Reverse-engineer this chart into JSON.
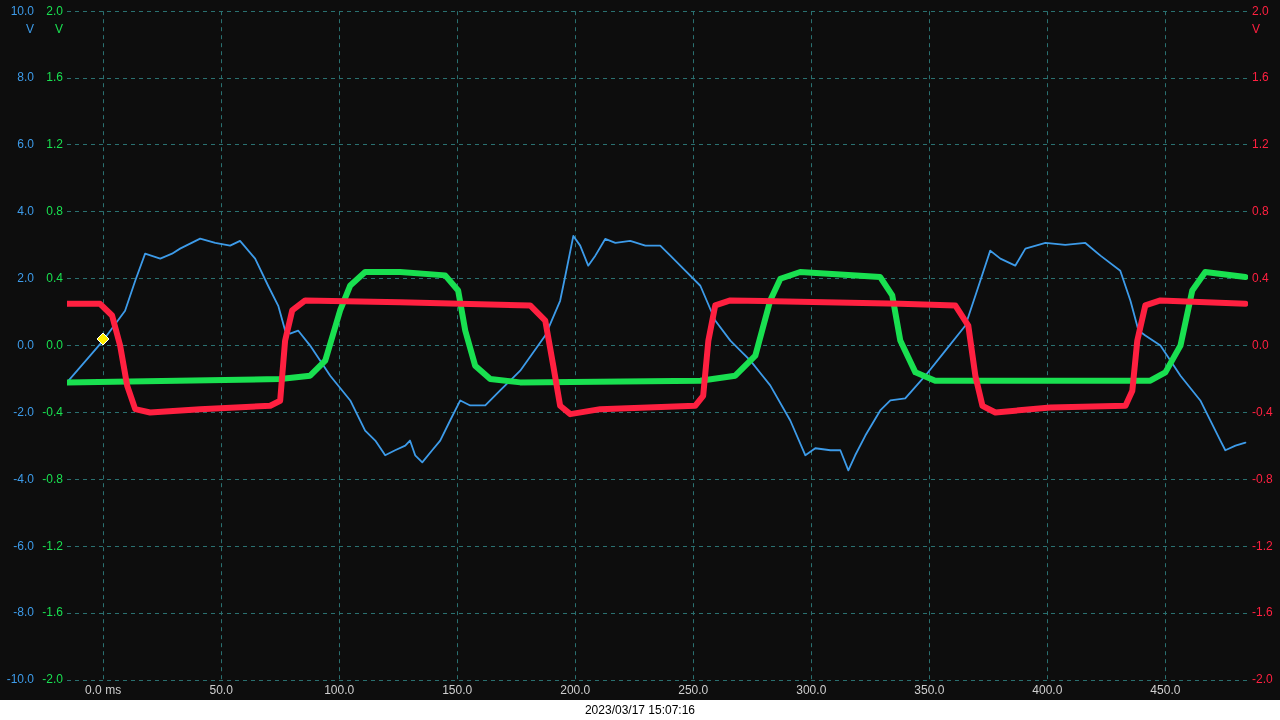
{
  "chart_data": {
    "type": "line",
    "xlim": [
      -15.3,
      485
    ],
    "xticks": [
      {
        "value": 0,
        "label": "0.0 ms"
      },
      {
        "value": 50,
        "label": "50.0"
      },
      {
        "value": 100,
        "label": "100.0"
      },
      {
        "value": 150,
        "label": "150.0"
      },
      {
        "value": 200,
        "label": "200.0"
      },
      {
        "value": 250,
        "label": "250.0"
      },
      {
        "value": 300,
        "label": "300.0"
      },
      {
        "value": 350,
        "label": "350.0"
      },
      {
        "value": 400,
        "label": "400.0"
      },
      {
        "value": 450,
        "label": "450.0"
      }
    ],
    "ylabel": "V",
    "y2label": "V",
    "y3label": "V",
    "ylim": [
      -10,
      10
    ],
    "yticks": [
      {
        "value": -10,
        "label": "-10.0"
      },
      {
        "value": -8,
        "label": "-8.0"
      },
      {
        "value": -6,
        "label": "-6.0"
      },
      {
        "value": -4,
        "label": "-4.0"
      },
      {
        "value": -2,
        "label": "-2.0"
      },
      {
        "value": 0,
        "label": "0.0"
      },
      {
        "value": 2,
        "label": "2.0"
      },
      {
        "value": 4,
        "label": "4.0"
      },
      {
        "value": 6,
        "label": "6.0"
      },
      {
        "value": 8,
        "label": "8.0"
      },
      {
        "value": 10,
        "label": "10.0"
      }
    ],
    "y2lim": [
      -2,
      2
    ],
    "y2ticks": [
      {
        "value": -2,
        "label": "-2.0"
      },
      {
        "value": -1.6,
        "label": "-1.6"
      },
      {
        "value": -1.2,
        "label": "-1.2"
      },
      {
        "value": -0.8,
        "label": "-0.8"
      },
      {
        "value": -0.4,
        "label": "-0.4"
      },
      {
        "value": 0,
        "label": "0.0"
      },
      {
        "value": 0.4,
        "label": "0.4"
      },
      {
        "value": 0.8,
        "label": "0.8"
      },
      {
        "value": 1.2,
        "label": "1.2"
      },
      {
        "value": 1.6,
        "label": "1.6"
      },
      {
        "value": 2,
        "label": "2.0"
      }
    ],
    "y3lim": [
      -2,
      2
    ],
    "y3ticks": [
      {
        "value": -2,
        "label": "-2.0"
      },
      {
        "value": -1.6,
        "label": "-1.6"
      },
      {
        "value": -1.2,
        "label": "-1.2"
      },
      {
        "value": -0.8,
        "label": "-0.8"
      },
      {
        "value": -0.4,
        "label": "-0.4"
      },
      {
        "value": 0,
        "label": "0.0"
      },
      {
        "value": 0.4,
        "label": "0.4"
      },
      {
        "value": 0.8,
        "label": "0.8"
      },
      {
        "value": 1.2,
        "label": "1.2"
      },
      {
        "value": 1.6,
        "label": "1.6"
      },
      {
        "value": 2,
        "label": "2.0"
      }
    ],
    "grid": true,
    "marker": "none",
    "annotations": [
      "2023/03/17 15:07:16"
    ],
    "series": [
      {
        "color": "#3d9be9",
        "axis": "y",
        "x": [
          -15.3,
          0,
          9.3,
          13.6,
          17.8,
          24.2,
          29.2,
          32.6,
          41.1,
          47.5,
          53.8,
          58,
          64.4,
          69.9,
          74.2,
          77.1,
          79.2,
          82.6,
          87.7,
          96.2,
          104.7,
          111,
          115.3,
          119.5,
          123.7,
          128,
          130,
          132.2,
          135.2,
          139.4,
          142.8,
          147,
          151.3,
          155.5,
          161.9,
          168.2,
          176.7,
          187.3,
          193.6,
          195.8,
          199.2,
          202.1,
          205.5,
          208.5,
          212.7,
          217,
          223.3,
          229.7,
          236,
          240.3,
          244.5,
          253,
          259.3,
          265.7,
          274.2,
          282.6,
          291.1,
          297.5,
          301.7,
          308.1,
          312.3,
          315.7,
          318.6,
          322.9,
          329.2,
          333.5,
          339.8,
          348.3,
          356.8,
          365.3,
          369.5,
          375.8,
          380.1,
          386.4,
          390.7,
          399.2,
          407.6,
          416.1,
          422.5,
          430.9,
          435.2,
          438.6,
          441.5,
          447.9,
          456.4,
          464.8,
          473.3,
          475.4,
          479.7,
          483.9
        ],
        "values": [
          -1.1,
          0.15,
          1.04,
          1.94,
          2.75,
          2.6,
          2.75,
          2.9,
          3.2,
          3.07,
          2.99,
          3.13,
          2.6,
          1.79,
          1.19,
          0.45,
          0.36,
          0.45,
          0,
          -0.9,
          -1.64,
          -2.54,
          -2.84,
          -3.28,
          -3.13,
          -2.99,
          -2.84,
          -3.28,
          -3.49,
          -3.13,
          -2.84,
          -2.24,
          -1.64,
          -1.79,
          -1.79,
          -1.34,
          -0.75,
          0.3,
          1.34,
          2.09,
          3.28,
          2.99,
          2.39,
          2.69,
          3.19,
          3.07,
          3.13,
          2.99,
          2.99,
          2.69,
          2.39,
          1.79,
          0.75,
          0.15,
          -0.45,
          -1.19,
          -2.24,
          -3.28,
          -3.07,
          -3.13,
          -3.13,
          -3.73,
          -3.28,
          -2.69,
          -1.94,
          -1.64,
          -1.58,
          -0.9,
          -0.15,
          0.6,
          1.49,
          2.84,
          2.6,
          2.39,
          2.9,
          3.07,
          3.01,
          3.07,
          2.69,
          2.24,
          1.34,
          0.45,
          0.3,
          0,
          -0.9,
          -1.64,
          -2.84,
          -3.13,
          -2.99,
          -2.9
        ]
      },
      {
        "color": "#19e050",
        "axis": "y3",
        "x": [
          -15.3,
          75,
          87.7,
          94.1,
          100.4,
          104.7,
          111,
          125.8,
          144.9,
          150.4,
          153.4,
          157.6,
          164,
          176.7,
          253,
          267.8,
          276.3,
          282.6,
          286.9,
          295.3,
          329.2,
          334.3,
          337.7,
          344.1,
          352.5,
          443.6,
          450,
          456.4,
          461.4,
          466.9,
          483.9
        ],
        "values": [
          -0.22,
          -0.2,
          -0.18,
          -0.09,
          0.21,
          0.36,
          0.44,
          0.44,
          0.42,
          0.33,
          0.09,
          -0.12,
          -0.2,
          -0.22,
          -0.21,
          -0.18,
          -0.06,
          0.27,
          0.4,
          0.44,
          0.41,
          0.3,
          0.03,
          -0.16,
          -0.21,
          -0.21,
          -0.16,
          0,
          0.33,
          0.44,
          0.41
        ]
      },
      {
        "color": "#ff2040",
        "axis": "y2",
        "x": [
          -15.3,
          -1.3,
          3.8,
          7.2,
          10.2,
          13.6,
          19.9,
          41.1,
          70.8,
          75,
          77.1,
          80.1,
          85.6,
          125.8,
          180.9,
          187.3,
          190.7,
          193.6,
          197.9,
          210.6,
          250.8,
          254.2,
          256.4,
          259.3,
          265.7,
          337.7,
          361,
          366.5,
          369.5,
          372.5,
          378,
          401.3,
          433.1,
          436,
          438.1,
          441.5,
          447.9,
          483.9
        ],
        "values": [
          0.25,
          0.25,
          0.18,
          0,
          -0.24,
          -0.38,
          -0.4,
          -0.38,
          -0.36,
          -0.33,
          0.03,
          0.21,
          0.27,
          0.26,
          0.24,
          0.15,
          -0.12,
          -0.36,
          -0.41,
          -0.38,
          -0.36,
          -0.3,
          0.03,
          0.24,
          0.27,
          0.25,
          0.24,
          0.12,
          -0.18,
          -0.36,
          -0.4,
          -0.37,
          -0.36,
          -0.27,
          0.03,
          0.24,
          0.27,
          0.25
        ]
      }
    ]
  }
}
